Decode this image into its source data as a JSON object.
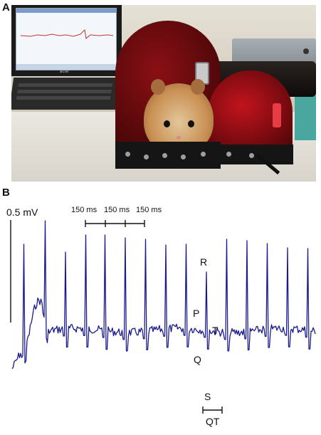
{
  "panels": {
    "a": {
      "label": "A"
    },
    "b": {
      "label": "B"
    }
  },
  "photo": {
    "laptop_brand": "acer"
  },
  "ecg": {
    "amplitude_scale": "0.5 mV",
    "interval_labels": [
      "150 ms",
      "150 ms",
      "150 ms"
    ],
    "wave_labels": {
      "p": "P",
      "q": "Q",
      "r": "R",
      "s": "S",
      "t": "T",
      "qt": "QT"
    },
    "trace_color": "#1a1a8c"
  }
}
